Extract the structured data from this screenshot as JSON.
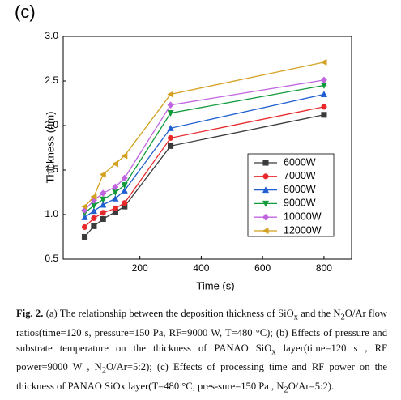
{
  "panel_label": "(c)",
  "chart_data": {
    "type": "line",
    "x_label": "Time (s)",
    "y_label": "Thickness (nm)",
    "x": [
      20,
      50,
      80,
      120,
      150,
      300,
      800
    ],
    "xlim": [
      -50,
      890
    ],
    "xticks": [
      200,
      400,
      600,
      800
    ],
    "ylim": [
      0.5,
      3.0
    ],
    "yticks": [
      0.5,
      {
        "value": 1.0,
        "label": "1.0"
      },
      1.5,
      {
        "value": 2.0,
        "label": "2.0"
      },
      2.5,
      {
        "value": 3.0,
        "label": "3.0"
      }
    ],
    "legend": "lower right",
    "series": [
      {
        "name": "6000W",
        "color": "#3a3a3a",
        "marker": "square",
        "values": [
          0.75,
          0.87,
          0.95,
          1.03,
          1.09,
          1.77,
          2.12
        ]
      },
      {
        "name": "7000W",
        "color": "#e8282a",
        "marker": "circle",
        "values": [
          0.86,
          0.96,
          1.02,
          1.07,
          1.13,
          1.86,
          2.21
        ]
      },
      {
        "name": "8000W",
        "color": "#1f5fd0",
        "marker": "triangle-up",
        "values": [
          0.97,
          1.04,
          1.11,
          1.18,
          1.27,
          1.97,
          2.35
        ]
      },
      {
        "name": "9000W",
        "color": "#109a3a",
        "marker": "triangle-down",
        "values": [
          1.02,
          1.1,
          1.17,
          1.25,
          1.33,
          2.14,
          2.45
        ]
      },
      {
        "name": "10000W",
        "color": "#c064e0",
        "marker": "diamond",
        "values": [
          1.05,
          1.16,
          1.24,
          1.31,
          1.41,
          2.23,
          2.51
        ]
      },
      {
        "name": "12000W",
        "color": "#d4a020",
        "marker": "triangle-left",
        "values": [
          1.09,
          1.2,
          1.45,
          1.57,
          1.66,
          2.35,
          2.71
        ]
      }
    ]
  },
  "caption": {
    "label": "Fig. 2.",
    "parts": [
      {
        "text": "(a) The relationship between the deposition thickness of SiO"
      },
      {
        "sub": "x"
      },
      {
        "text": " and the N"
      },
      {
        "sub": "2"
      },
      {
        "text": "O/Ar flow ratios(time=120 s, pressure=150 Pa, RF=9000 W, T=480 °C); (b) Effects of pressure and substrate temperature on the thickness of PANAO SiO"
      },
      {
        "sub": "x"
      },
      {
        "text": " layer(time=120 s , RF power=9000 W , N"
      },
      {
        "sub": "2"
      },
      {
        "text": "O/Ar=5:2); (c) Effects of processing time and RF power on the thickness of PANAO SiOx layer(T=480 °C, pres-sure=150 Pa , N"
      },
      {
        "sub": "2"
      },
      {
        "text": "O/Ar=5:2)."
      }
    ]
  }
}
